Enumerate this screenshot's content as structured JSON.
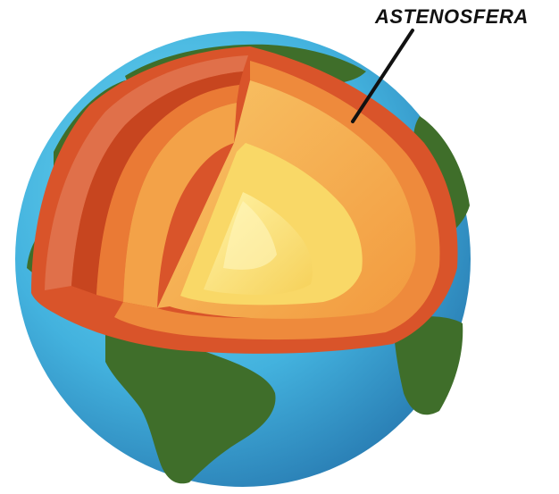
{
  "diagram": {
    "label": "ASTENOSFERA"
  },
  "colors": {
    "ocean_light": "#5fd0ec",
    "ocean_dark": "#2f8dbf",
    "land": "#3f6e2a",
    "crust_outer": "#d9542a",
    "lithosphere": "#e8632b",
    "asthenosphere": "#ee8a3c",
    "mantle": "#f6b24f",
    "outer_core": "#f9d867",
    "inner_core": "#fbe98a"
  },
  "icons": [
    "earth-globe-icon"
  ]
}
